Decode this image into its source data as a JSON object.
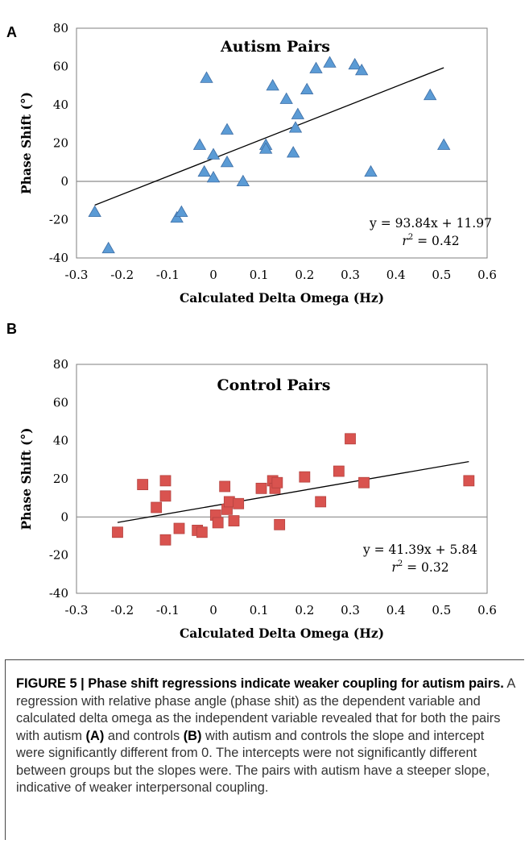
{
  "panels": [
    {
      "letter": "A"
    },
    {
      "letter": "B"
    }
  ],
  "chart_data": [
    {
      "type": "scatter",
      "title": "Autism Pairs",
      "xlabel": "Calculated Delta Omega (Hz)",
      "ylabel": "Phase Shift (°)",
      "xlim": [
        -0.3,
        0.6
      ],
      "ylim": [
        -40,
        80
      ],
      "xticks": [
        "-0.3",
        "-0.2",
        "-0.1",
        "0",
        "0.1",
        "0.2",
        "0.3",
        "0.4",
        "0.5",
        "0.6"
      ],
      "yticks": [
        "80",
        "60",
        "40",
        "20",
        "0",
        "-20",
        "-40"
      ],
      "marker": "triangle",
      "color": "#5b9bd5",
      "points": [
        {
          "x": -0.26,
          "y": -16
        },
        {
          "x": -0.23,
          "y": -35
        },
        {
          "x": -0.08,
          "y": -19
        },
        {
          "x": -0.07,
          "y": -16
        },
        {
          "x": -0.03,
          "y": 19
        },
        {
          "x": -0.02,
          "y": 5
        },
        {
          "x": -0.015,
          "y": 54
        },
        {
          "x": 0.0,
          "y": 14
        },
        {
          "x": 0.0,
          "y": 2
        },
        {
          "x": 0.03,
          "y": 27
        },
        {
          "x": 0.03,
          "y": 10
        },
        {
          "x": 0.065,
          "y": 0
        },
        {
          "x": 0.115,
          "y": 19
        },
        {
          "x": 0.115,
          "y": 17
        },
        {
          "x": 0.13,
          "y": 50
        },
        {
          "x": 0.16,
          "y": 43
        },
        {
          "x": 0.175,
          "y": 15
        },
        {
          "x": 0.18,
          "y": 28
        },
        {
          "x": 0.185,
          "y": 35
        },
        {
          "x": 0.205,
          "y": 48
        },
        {
          "x": 0.225,
          "y": 59
        },
        {
          "x": 0.255,
          "y": 62
        },
        {
          "x": 0.31,
          "y": 61
        },
        {
          "x": 0.325,
          "y": 58
        },
        {
          "x": 0.345,
          "y": 5
        },
        {
          "x": 0.475,
          "y": 45
        },
        {
          "x": 0.505,
          "y": 19
        }
      ],
      "trendline": {
        "slope": 93.84,
        "intercept": 11.97,
        "x_range": [
          -0.26,
          0.505
        ],
        "color": "#000000"
      },
      "equation": "y = 93.84x + 11.97",
      "r2_label": "r",
      "r2_value": " = 0.42"
    },
    {
      "type": "scatter",
      "title": "Control Pairs",
      "xlabel": "Calculated Delta Omega (Hz)",
      "ylabel": "Phase Shift (°)",
      "xlim": [
        -0.3,
        0.6
      ],
      "ylim": [
        -40,
        80
      ],
      "xticks": [
        "-0.3",
        "-0.2",
        "-0.1",
        "0",
        "0.1",
        "0.2",
        "0.3",
        "0.4",
        "0.5",
        "0.6"
      ],
      "yticks": [
        "80",
        "60",
        "40",
        "20",
        "0",
        "-20",
        "-40"
      ],
      "marker": "square",
      "color": "#d9534f",
      "points": [
        {
          "x": -0.21,
          "y": -8
        },
        {
          "x": -0.155,
          "y": 17
        },
        {
          "x": -0.125,
          "y": 5
        },
        {
          "x": -0.105,
          "y": 19
        },
        {
          "x": -0.105,
          "y": 11
        },
        {
          "x": -0.105,
          "y": -12
        },
        {
          "x": -0.075,
          "y": -6
        },
        {
          "x": -0.035,
          "y": -7
        },
        {
          "x": -0.025,
          "y": -8
        },
        {
          "x": 0.005,
          "y": 1
        },
        {
          "x": 0.01,
          "y": -3
        },
        {
          "x": 0.025,
          "y": 16
        },
        {
          "x": 0.03,
          "y": 4
        },
        {
          "x": 0.035,
          "y": 8
        },
        {
          "x": 0.045,
          "y": -2
        },
        {
          "x": 0.055,
          "y": 7
        },
        {
          "x": 0.105,
          "y": 15
        },
        {
          "x": 0.13,
          "y": 19
        },
        {
          "x": 0.135,
          "y": 15
        },
        {
          "x": 0.14,
          "y": 18
        },
        {
          "x": 0.145,
          "y": -4
        },
        {
          "x": 0.2,
          "y": 21
        },
        {
          "x": 0.235,
          "y": 8
        },
        {
          "x": 0.275,
          "y": 24
        },
        {
          "x": 0.3,
          "y": 41
        },
        {
          "x": 0.33,
          "y": 18
        },
        {
          "x": 0.56,
          "y": 19
        }
      ],
      "trendline": {
        "slope": 41.39,
        "intercept": 5.84,
        "x_range": [
          -0.21,
          0.56
        ],
        "color": "#000000"
      },
      "equation": "y = 41.39x + 5.84",
      "r2_label": "r",
      "r2_value": " = 0.32"
    }
  ],
  "caption": {
    "label": "FIGURE 5 | Phase shift regressions indicate weaker coupling for autism pairs.",
    "text_1": " A regression with relative phase angle (phase shit) as the dependent variable and calculated delta omega as the independent variable revealed that for both the pairs with autism ",
    "ref_a": "(A)",
    "text_2": " and controls ",
    "ref_b": "(B)",
    "text_3": " with autism and controls the slope and intercept were significantly different from 0. The intercepts were not significantly different between groups but the slopes were. The pairs with autism have a steeper slope, indicative of weaker interpersonal coupling."
  }
}
